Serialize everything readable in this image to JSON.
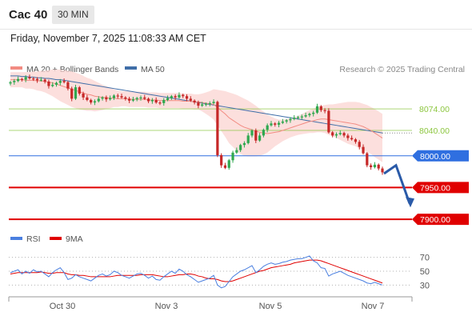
{
  "header": {
    "title": "Cac 40",
    "timeframe": "30 MIN"
  },
  "date_text": "Friday, November 7, 2025 11:08:33 AM CET",
  "credit": "Research © 2025 Trading Central",
  "colors": {
    "bollinger": "#f28b82",
    "band_fill": "#fbd4d2",
    "ma50": "#3f6ea8",
    "support": "#e00000",
    "pivot": "#2f6fe0",
    "resistance": "#8cc63f",
    "up": "#2fa84f",
    "down": "#c62828",
    "rsi": "#4a7fe0",
    "rsi_ma": "#e00000",
    "arrow": "#2a5aa8"
  },
  "chart_data": [
    {
      "type": "line",
      "title": "",
      "legend": [
        {
          "name": "MA 20 + Bollinger Bands",
          "color": "#f28b82"
        },
        {
          "name": "MA 50",
          "color": "#3f6ea8"
        }
      ],
      "x_ticks": [
        "Oct 30",
        "Nov 3",
        "Nov 5",
        "Nov 7"
      ],
      "ylim": [
        7890,
        8122
      ],
      "levels": [
        {
          "label": "8074.00",
          "value": 8074,
          "kind": "resistance"
        },
        {
          "label": "8040.00",
          "value": 8040,
          "kind": "resistance"
        },
        {
          "label": "8000.00",
          "value": 8000,
          "kind": "pivot"
        },
        {
          "label": "7950.00",
          "value": 7950,
          "kind": "support"
        },
        {
          "label": "7900.00",
          "value": 7900,
          "kind": "support"
        }
      ],
      "forecast": {
        "from": 7972,
        "mid": 7985,
        "to": 7925
      },
      "close": [
        8116,
        8118,
        8121,
        8120,
        8124,
        8122,
        8121,
        8119,
        8120,
        8117,
        8110,
        8112,
        8115,
        8118,
        8116,
        8106,
        8090,
        8108,
        8098,
        8092,
        8088,
        8084,
        8086,
        8090,
        8092,
        8089,
        8091,
        8095,
        8094,
        8092,
        8090,
        8087,
        8089,
        8091,
        8092,
        8090,
        8086,
        8088,
        8084,
        8083,
        8088,
        8091,
        8094,
        8092,
        8096,
        8094,
        8090,
        8087,
        8084,
        8079,
        8081,
        8082,
        8083,
        8085,
        8001,
        7985,
        7981,
        7993,
        8005,
        8009,
        8017,
        8020,
        8032,
        8040,
        8024,
        8032,
        8041,
        8048,
        8051,
        8049,
        8052,
        8054,
        8056,
        8058,
        8060,
        8061,
        8062,
        8064,
        8066,
        8068,
        8078,
        8072,
        8071,
        8037,
        8032,
        8034,
        8036,
        8032,
        8028,
        8026,
        8022,
        8014,
        8004,
        7985,
        7982,
        7986,
        7980,
        7974
      ],
      "ma20": [
        8120,
        8120,
        8120,
        8120,
        8119,
        8119,
        8119,
        8118,
        8118,
        8117,
        8116,
        8115,
        8113,
        8111,
        8109,
        8107,
        8105,
        8103,
        8101,
        8099,
        8097,
        8096,
        8094,
        8093,
        8092,
        8092,
        8091,
        8091,
        8090,
        8090,
        8090,
        8089,
        8089,
        8089,
        8089,
        8089,
        8088,
        8088,
        8088,
        8087,
        8087,
        8087,
        8087,
        8087,
        8087,
        8086,
        8086,
        8086,
        8085,
        8085,
        8084,
        8083,
        8082,
        8081,
        8076,
        8071,
        8066,
        8060,
        8056,
        8052,
        8048,
        8045,
        8043,
        8041,
        8039,
        8037,
        8036,
        8035,
        8036,
        8037,
        8038,
        8040,
        8042,
        8044,
        8046,
        8048,
        8050,
        8052,
        8054,
        8055,
        8057,
        8058,
        8058,
        8057,
        8056,
        8055,
        8054,
        8053,
        8052,
        8051,
        8050,
        8048,
        8046,
        8043,
        8040,
        8036,
        8032,
        8028
      ],
      "ma50": [
        8126,
        8126,
        8126,
        8125,
        8125,
        8124,
        8124,
        8123,
        8123,
        8122,
        8122,
        8121,
        8120,
        8120,
        8119,
        8118,
        8117,
        8116,
        8115,
        8114,
        8113,
        8112,
        8111,
        8110,
        8109,
        8108,
        8107,
        8106,
        8105,
        8104,
        8103,
        8102,
        8101,
        8100,
        8099,
        8098,
        8097,
        8096,
        8095,
        8094,
        8093,
        8092,
        8091,
        8090,
        8089,
        8088,
        8087,
        8086,
        8085,
        8084,
        8083,
        8082,
        8081,
        8080,
        8079,
        8078,
        8077,
        8076,
        8075,
        8074,
        8073,
        8072,
        8071,
        8070,
        8069,
        8068,
        8067,
        8066,
        8065,
        8064,
        8063,
        8062,
        8061,
        8060,
        8059,
        8058,
        8057,
        8056,
        8055,
        8054,
        8053,
        8052,
        8051,
        8050,
        8049,
        8048,
        8047,
        8046,
        8045,
        8044,
        8043,
        8042,
        8041,
        8040,
        8039,
        8038,
        8037,
        8036
      ],
      "bb_width": [
        12,
        12,
        12,
        12,
        13,
        13,
        14,
        15,
        16,
        17,
        19,
        21,
        23,
        25,
        26,
        27,
        28,
        28,
        28,
        27,
        26,
        25,
        24,
        22,
        20,
        18,
        16,
        14,
        13,
        12,
        12,
        12,
        12,
        12,
        12,
        12,
        12,
        12,
        12,
        12,
        12,
        12,
        12,
        12,
        12,
        12,
        12,
        12,
        12,
        12,
        14,
        17,
        20,
        24,
        28,
        32,
        36,
        40,
        42,
        44,
        45,
        45,
        44,
        42,
        40,
        37,
        34,
        30,
        26,
        22,
        19,
        17,
        16,
        15,
        15,
        15,
        16,
        17,
        18,
        19,
        20,
        21,
        22,
        24,
        25,
        27,
        29,
        31,
        33,
        34,
        35,
        36,
        36,
        37,
        37,
        38,
        38,
        38
      ]
    },
    {
      "type": "line",
      "title": "",
      "legend": [
        {
          "name": "RSI",
          "color": "#4a7fe0"
        },
        {
          "name": "9MA",
          "color": "#e00000"
        }
      ],
      "ylim": [
        20,
        80
      ],
      "y_ticks": [
        "70",
        "50",
        "30"
      ],
      "rsi": [
        48,
        50,
        52,
        46,
        50,
        47,
        52,
        49,
        50,
        46,
        42,
        48,
        52,
        55,
        48,
        38,
        40,
        45,
        42,
        40,
        38,
        36,
        40,
        44,
        46,
        43,
        45,
        50,
        48,
        44,
        42,
        40,
        43,
        46,
        47,
        44,
        40,
        43,
        38,
        37,
        42,
        46,
        50,
        47,
        53,
        50,
        45,
        42,
        38,
        34,
        36,
        38,
        40,
        44,
        30,
        26,
        28,
        35,
        42,
        46,
        50,
        52,
        55,
        58,
        48,
        52,
        57,
        60,
        62,
        60,
        61,
        63,
        64,
        66,
        67,
        68,
        68,
        70,
        72,
        65,
        62,
        55,
        54,
        43,
        46,
        48,
        50,
        47,
        44,
        42,
        40,
        38,
        36,
        33,
        32,
        34,
        32,
        30
      ],
      "rsi_ma": [
        46,
        47,
        48,
        48,
        48,
        48,
        48,
        48,
        49,
        48,
        47,
        47,
        48,
        48,
        48,
        46,
        45,
        45,
        44,
        44,
        43,
        42,
        42,
        42,
        42,
        42,
        42,
        43,
        44,
        44,
        44,
        44,
        44,
        44,
        45,
        45,
        45,
        45,
        44,
        43,
        42,
        42,
        43,
        44,
        45,
        45,
        46,
        46,
        45,
        43,
        42,
        40,
        39,
        39,
        38,
        36,
        35,
        35,
        36,
        38,
        40,
        42,
        44,
        46,
        48,
        50,
        51,
        53,
        55,
        56,
        57,
        58,
        59,
        60,
        62,
        63,
        64,
        65,
        66,
        66,
        66,
        65,
        63,
        61,
        59,
        57,
        55,
        53,
        51,
        49,
        47,
        45,
        43,
        41,
        39,
        37,
        35,
        33
      ]
    }
  ]
}
